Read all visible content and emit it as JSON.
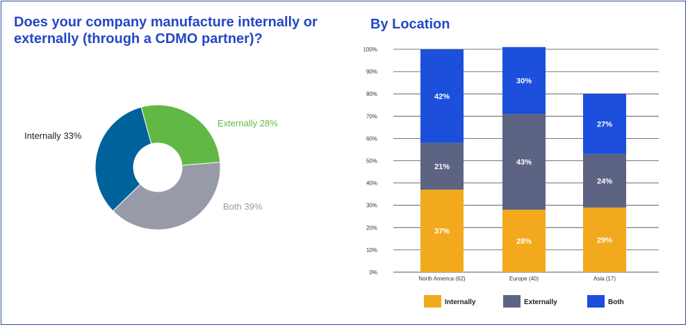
{
  "left_panel": {
    "title_line1": "Does your company manufacture internally or",
    "title_line2": "externally (through a CDMO partner)?"
  },
  "right_panel": {
    "title": "By Location"
  },
  "colors": {
    "title": "#2347c5",
    "internally_donut": "#00629b",
    "externally_donut": "#62b845",
    "both_donut": "#979ba8",
    "internally_bar": "#f2a91e",
    "externally_bar": "#5d6382",
    "both_bar": "#1c4fdb",
    "border": "#2f4aa8"
  },
  "chart_data": [
    {
      "type": "pie",
      "variant": "donut",
      "title": "Does your company manufacture internally or externally (through a CDMO partner)?",
      "slices": [
        {
          "label": "Externally 28%",
          "name": "Externally",
          "value": 28,
          "color": "#62b845",
          "label_color": "#62b845"
        },
        {
          "label": "Both 39%",
          "name": "Both",
          "value": 39,
          "color": "#979ba8",
          "label_color": "#979ba8"
        },
        {
          "label": "Internally 33%",
          "name": "Internally",
          "value": 33,
          "color": "#00629b",
          "label_color": "#222222"
        }
      ]
    },
    {
      "type": "bar",
      "stacked": true,
      "title": "By Location",
      "categories": [
        "North America (62)",
        "Europe (40)",
        "Asia (17)"
      ],
      "series": [
        {
          "name": "Internally",
          "values": [
            37,
            28,
            29
          ],
          "labels": [
            "37%",
            "28%",
            "29%"
          ],
          "color": "#f2a91e"
        },
        {
          "name": "Externally",
          "values": [
            21,
            43,
            24
          ],
          "labels": [
            "21%",
            "43%",
            "24%"
          ],
          "color": "#5d6382"
        },
        {
          "name": "Both",
          "values": [
            42,
            30,
            27
          ],
          "labels": [
            "42%",
            "30%",
            "27%"
          ],
          "color": "#1c4fdb"
        }
      ],
      "y_ticks": [
        "0%",
        "10%",
        "20%",
        "30%",
        "40%",
        "50%",
        "60%",
        "70%",
        "80%",
        "90%",
        "100%"
      ],
      "ylim": [
        0,
        100
      ],
      "grid": true,
      "legend": "bottom"
    }
  ]
}
